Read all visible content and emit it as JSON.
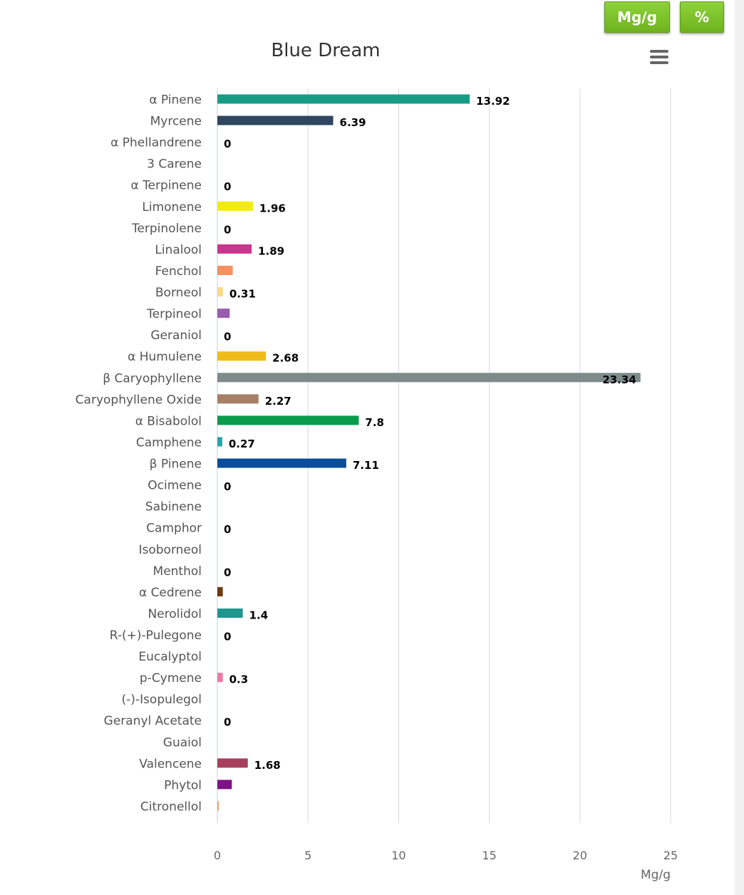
{
  "unit_buttons": {
    "mg_label": "Mg/g",
    "pct_label": "%"
  },
  "chart_data": {
    "type": "bar",
    "orientation": "horizontal",
    "title": "Blue Dream",
    "xlabel": "Mg/g",
    "ylabel": "",
    "xlim": [
      0,
      25
    ],
    "x_ticks": [
      0,
      5,
      10,
      15,
      20,
      25
    ],
    "grid": true,
    "menu_icon": "hamburger-menu-icon",
    "bars": [
      {
        "category": "α Pinene",
        "value": 13.92,
        "label": "13.92",
        "color": "#169c86"
      },
      {
        "category": "Myrcene",
        "value": 6.39,
        "label": "6.39",
        "color": "#2f4660"
      },
      {
        "category": "α Phellandrene",
        "value": 0,
        "label": "0",
        "color": "#888888"
      },
      {
        "category": "3 Carene",
        "value": 0,
        "label": "",
        "color": "#888888"
      },
      {
        "category": "α Terpinene",
        "value": 0,
        "label": "0",
        "color": "#888888"
      },
      {
        "category": "Limonene",
        "value": 1.96,
        "label": "1.96",
        "color": "#f2eb11"
      },
      {
        "category": "Terpinolene",
        "value": 0,
        "label": "0",
        "color": "#888888"
      },
      {
        "category": "Linalool",
        "value": 1.89,
        "label": "1.89",
        "color": "#c7358f"
      },
      {
        "category": "Fenchol",
        "value": 0.85,
        "label": "",
        "color": "#f8905f"
      },
      {
        "category": "Borneol",
        "value": 0.31,
        "label": "0.31",
        "color": "#f8d98b"
      },
      {
        "category": "Terpineol",
        "value": 0.68,
        "label": "",
        "color": "#9a5cad"
      },
      {
        "category": "Geraniol",
        "value": 0,
        "label": "0",
        "color": "#888888"
      },
      {
        "category": "α Humulene",
        "value": 2.68,
        "label": "2.68",
        "color": "#efbc1b"
      },
      {
        "category": "β Caryophyllene",
        "value": 23.34,
        "label": "23.34",
        "color": "#7e8b8b"
      },
      {
        "category": "Caryophyllene Oxide",
        "value": 2.27,
        "label": "2.27",
        "color": "#a77e66"
      },
      {
        "category": "α Bisabolol",
        "value": 7.8,
        "label": "7.8",
        "color": "#0a9b4c"
      },
      {
        "category": "Camphene",
        "value": 0.27,
        "label": "0.27",
        "color": "#21a6a8"
      },
      {
        "category": "β Pinene",
        "value": 7.11,
        "label": "7.11",
        "color": "#0a4d9b"
      },
      {
        "category": "Ocimene",
        "value": 0,
        "label": "0",
        "color": "#888888"
      },
      {
        "category": "Sabinene",
        "value": 0,
        "label": "",
        "color": "#888888"
      },
      {
        "category": "Camphor",
        "value": 0,
        "label": "0",
        "color": "#888888"
      },
      {
        "category": "Isoborneol",
        "value": 0,
        "label": "",
        "color": "#888888"
      },
      {
        "category": "Menthol",
        "value": 0,
        "label": "0",
        "color": "#888888"
      },
      {
        "category": "α Cedrene",
        "value": 0.3,
        "label": "",
        "color": "#6b3a12"
      },
      {
        "category": "Nerolidol",
        "value": 1.4,
        "label": "1.4",
        "color": "#1e968d"
      },
      {
        "category": "R-(+)-Pulegone",
        "value": 0,
        "label": "0",
        "color": "#888888"
      },
      {
        "category": "Eucalyptol",
        "value": 0,
        "label": "",
        "color": "#888888"
      },
      {
        "category": "p-Cymene",
        "value": 0.3,
        "label": "0.3",
        "color": "#ee7aa6"
      },
      {
        "category": "(-)-Isopulegol",
        "value": 0,
        "label": "",
        "color": "#888888"
      },
      {
        "category": "Geranyl Acetate",
        "value": 0,
        "label": "0",
        "color": "#888888"
      },
      {
        "category": "Guaiol",
        "value": 0,
        "label": "",
        "color": "#888888"
      },
      {
        "category": "Valencene",
        "value": 1.68,
        "label": "1.68",
        "color": "#a83e5e"
      },
      {
        "category": "Phytol",
        "value": 0.8,
        "label": "",
        "color": "#7d1385"
      },
      {
        "category": "Citronellol",
        "value": 0.08,
        "label": "",
        "color": "#f2a06a"
      }
    ]
  }
}
